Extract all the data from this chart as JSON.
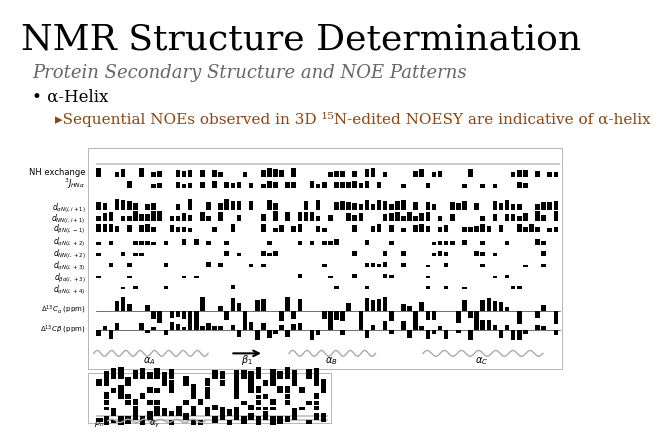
{
  "title": "NMR Structure Determination",
  "subtitle": "Protein Secondary Structure and NOE Patterns",
  "bullet": "• α-Helix",
  "sub_bullet": "▸Sequential NOEs observed in 3D ¹⁵N-edited NOESY are indicative of α-helix",
  "bg_color": "#ffffff",
  "title_color": "#000000",
  "subtitle_color": "#666666",
  "bullet_color": "#000000",
  "sub_bullet_color": "#8B4513",
  "title_fontsize": 26,
  "subtitle_fontsize": 13,
  "bullet_fontsize": 12,
  "sub_bullet_fontsize": 11
}
